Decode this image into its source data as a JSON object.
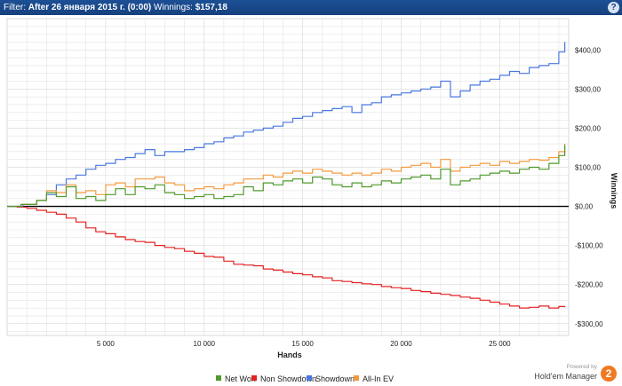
{
  "header": {
    "filter_label": "Filter:",
    "filter_value": "After 26 января 2015 г. (0:00)",
    "winnings_label": "Winnings:",
    "winnings_value": "$157,18",
    "help_label": "?"
  },
  "branding": {
    "powered_by": "Powered by",
    "product": "Hold'em Manager",
    "logo_text": "2"
  },
  "colors": {
    "net_won": "#4f9a2b",
    "non_showdown": "#e42121",
    "showdown": "#4a77e0",
    "allin_ev": "#f39a3e",
    "zero_line": "#000000",
    "grid": "#e3e3e3"
  },
  "chart_data": {
    "type": "line",
    "xlabel": "Hands",
    "ylabel": "Winnings",
    "xlim": [
      0,
      28500
    ],
    "ylim": [
      -330,
      480
    ],
    "x_ticks": [
      5000,
      10000,
      15000,
      20000,
      25000
    ],
    "x_tick_labels": [
      "5 000",
      "10 000",
      "15 000",
      "20 000",
      "25 000"
    ],
    "y_ticks": [
      400,
      300,
      200,
      100,
      0,
      -100,
      -200,
      -300
    ],
    "y_tick_labels": [
      "$400,00",
      "$300,00",
      "$200,00",
      "$100,00",
      "$0,00",
      "-$100,00",
      "-$200,00",
      "-$300,00"
    ],
    "grid": true,
    "legend_position": "bottom",
    "series": [
      {
        "name": "Net Won",
        "color_key": "net_won",
        "points": [
          [
            0,
            0
          ],
          [
            700,
            5
          ],
          [
            1500,
            15
          ],
          [
            2000,
            35
          ],
          [
            2500,
            25
          ],
          [
            3000,
            50
          ],
          [
            3500,
            20
          ],
          [
            4000,
            25
          ],
          [
            4500,
            15
          ],
          [
            5000,
            30
          ],
          [
            5500,
            45
          ],
          [
            6000,
            30
          ],
          [
            6500,
            50
          ],
          [
            7000,
            45
          ],
          [
            7500,
            55
          ],
          [
            8000,
            35
          ],
          [
            8500,
            30
          ],
          [
            9000,
            20
          ],
          [
            9500,
            25
          ],
          [
            10000,
            30
          ],
          [
            10500,
            20
          ],
          [
            11000,
            25
          ],
          [
            11500,
            30
          ],
          [
            12000,
            50
          ],
          [
            12500,
            40
          ],
          [
            13000,
            60
          ],
          [
            13500,
            55
          ],
          [
            14000,
            65
          ],
          [
            14500,
            70
          ],
          [
            15000,
            60
          ],
          [
            15500,
            75
          ],
          [
            16000,
            70
          ],
          [
            16500,
            55
          ],
          [
            17000,
            50
          ],
          [
            17500,
            60
          ],
          [
            18000,
            50
          ],
          [
            18500,
            55
          ],
          [
            19000,
            65
          ],
          [
            19500,
            60
          ],
          [
            20000,
            70
          ],
          [
            20500,
            75
          ],
          [
            21000,
            80
          ],
          [
            21500,
            70
          ],
          [
            22000,
            95
          ],
          [
            22500,
            55
          ],
          [
            23000,
            65
          ],
          [
            23500,
            70
          ],
          [
            24000,
            80
          ],
          [
            24500,
            85
          ],
          [
            25000,
            90
          ],
          [
            25500,
            85
          ],
          [
            26000,
            95
          ],
          [
            26500,
            100
          ],
          [
            27000,
            95
          ],
          [
            27500,
            110
          ],
          [
            28000,
            130
          ],
          [
            28300,
            157
          ]
        ]
      },
      {
        "name": "Non Showdown",
        "color_key": "non_showdown",
        "points": [
          [
            0,
            0
          ],
          [
            500,
            -2
          ],
          [
            1000,
            -5
          ],
          [
            1500,
            -10
          ],
          [
            2000,
            -15
          ],
          [
            2500,
            -20
          ],
          [
            3000,
            -30
          ],
          [
            3500,
            -40
          ],
          [
            4000,
            -55
          ],
          [
            4500,
            -65
          ],
          [
            5000,
            -70
          ],
          [
            5500,
            -78
          ],
          [
            6000,
            -85
          ],
          [
            6500,
            -90
          ],
          [
            7000,
            -92
          ],
          [
            7500,
            -100
          ],
          [
            8000,
            -105
          ],
          [
            8500,
            -108
          ],
          [
            9000,
            -115
          ],
          [
            9500,
            -120
          ],
          [
            10000,
            -128
          ],
          [
            10500,
            -130
          ],
          [
            11000,
            -140
          ],
          [
            11500,
            -148
          ],
          [
            12000,
            -150
          ],
          [
            12500,
            -152
          ],
          [
            13000,
            -160
          ],
          [
            13500,
            -163
          ],
          [
            14000,
            -168
          ],
          [
            14500,
            -172
          ],
          [
            15000,
            -175
          ],
          [
            15500,
            -180
          ],
          [
            16000,
            -183
          ],
          [
            16500,
            -190
          ],
          [
            17000,
            -192
          ],
          [
            17500,
            -195
          ],
          [
            18000,
            -198
          ],
          [
            18500,
            -200
          ],
          [
            19000,
            -205
          ],
          [
            19500,
            -208
          ],
          [
            20000,
            -210
          ],
          [
            20500,
            -215
          ],
          [
            21000,
            -218
          ],
          [
            21500,
            -222
          ],
          [
            22000,
            -225
          ],
          [
            22500,
            -228
          ],
          [
            23000,
            -232
          ],
          [
            23500,
            -235
          ],
          [
            24000,
            -240
          ],
          [
            24500,
            -245
          ],
          [
            25000,
            -250
          ],
          [
            25500,
            -255
          ],
          [
            26000,
            -260
          ],
          [
            26500,
            -258
          ],
          [
            27000,
            -255
          ],
          [
            27500,
            -260
          ],
          [
            28000,
            -256
          ],
          [
            28300,
            -258
          ]
        ]
      },
      {
        "name": "Showdown",
        "color_key": "showdown",
        "points": [
          [
            0,
            0
          ],
          [
            800,
            5
          ],
          [
            1500,
            15
          ],
          [
            2000,
            30
          ],
          [
            2500,
            55
          ],
          [
            3000,
            70
          ],
          [
            3500,
            80
          ],
          [
            4000,
            95
          ],
          [
            4500,
            105
          ],
          [
            5000,
            110
          ],
          [
            5500,
            120
          ],
          [
            6000,
            125
          ],
          [
            6500,
            135
          ],
          [
            7000,
            145
          ],
          [
            7500,
            130
          ],
          [
            8000,
            140
          ],
          [
            8500,
            140
          ],
          [
            9000,
            145
          ],
          [
            9500,
            150
          ],
          [
            10000,
            160
          ],
          [
            10500,
            165
          ],
          [
            11000,
            175
          ],
          [
            11500,
            180
          ],
          [
            12000,
            190
          ],
          [
            12500,
            195
          ],
          [
            13000,
            200
          ],
          [
            13500,
            205
          ],
          [
            14000,
            215
          ],
          [
            14500,
            225
          ],
          [
            15000,
            230
          ],
          [
            15500,
            240
          ],
          [
            16000,
            245
          ],
          [
            16500,
            250
          ],
          [
            17000,
            255
          ],
          [
            17500,
            240
          ],
          [
            18000,
            260
          ],
          [
            18500,
            265
          ],
          [
            19000,
            280
          ],
          [
            19500,
            285
          ],
          [
            20000,
            290
          ],
          [
            20500,
            295
          ],
          [
            21000,
            300
          ],
          [
            21500,
            305
          ],
          [
            22000,
            320
          ],
          [
            22500,
            280
          ],
          [
            23000,
            295
          ],
          [
            23500,
            310
          ],
          [
            24000,
            320
          ],
          [
            24500,
            325
          ],
          [
            25000,
            335
          ],
          [
            25500,
            345
          ],
          [
            26000,
            340
          ],
          [
            26500,
            355
          ],
          [
            27000,
            360
          ],
          [
            27500,
            365
          ],
          [
            28000,
            395
          ],
          [
            28300,
            420
          ]
        ]
      },
      {
        "name": "All-In EV",
        "color_key": "allin_ev",
        "points": [
          [
            0,
            0
          ],
          [
            700,
            5
          ],
          [
            1500,
            15
          ],
          [
            2000,
            40
          ],
          [
            2500,
            35
          ],
          [
            3000,
            55
          ],
          [
            3500,
            35
          ],
          [
            4000,
            40
          ],
          [
            4500,
            30
          ],
          [
            5000,
            55
          ],
          [
            5500,
            60
          ],
          [
            6000,
            50
          ],
          [
            6500,
            70
          ],
          [
            7000,
            70
          ],
          [
            7500,
            75
          ],
          [
            8000,
            60
          ],
          [
            8500,
            55
          ],
          [
            9000,
            40
          ],
          [
            9500,
            45
          ],
          [
            10000,
            50
          ],
          [
            10500,
            45
          ],
          [
            11000,
            55
          ],
          [
            11500,
            60
          ],
          [
            12000,
            70
          ],
          [
            12500,
            70
          ],
          [
            13000,
            80
          ],
          [
            13500,
            75
          ],
          [
            14000,
            85
          ],
          [
            14500,
            90
          ],
          [
            15000,
            85
          ],
          [
            15500,
            95
          ],
          [
            16000,
            90
          ],
          [
            16500,
            85
          ],
          [
            17000,
            80
          ],
          [
            17500,
            85
          ],
          [
            18000,
            80
          ],
          [
            18500,
            85
          ],
          [
            19000,
            95
          ],
          [
            19500,
            90
          ],
          [
            20000,
            100
          ],
          [
            20500,
            105
          ],
          [
            21000,
            110
          ],
          [
            21500,
            100
          ],
          [
            22000,
            120
          ],
          [
            22500,
            90
          ],
          [
            23000,
            100
          ],
          [
            23500,
            105
          ],
          [
            24000,
            110
          ],
          [
            24500,
            105
          ],
          [
            25000,
            115
          ],
          [
            25500,
            110
          ],
          [
            26000,
            115
          ],
          [
            26500,
            120
          ],
          [
            27000,
            118
          ],
          [
            27500,
            125
          ],
          [
            28000,
            140
          ],
          [
            28300,
            160
          ]
        ]
      }
    ]
  }
}
